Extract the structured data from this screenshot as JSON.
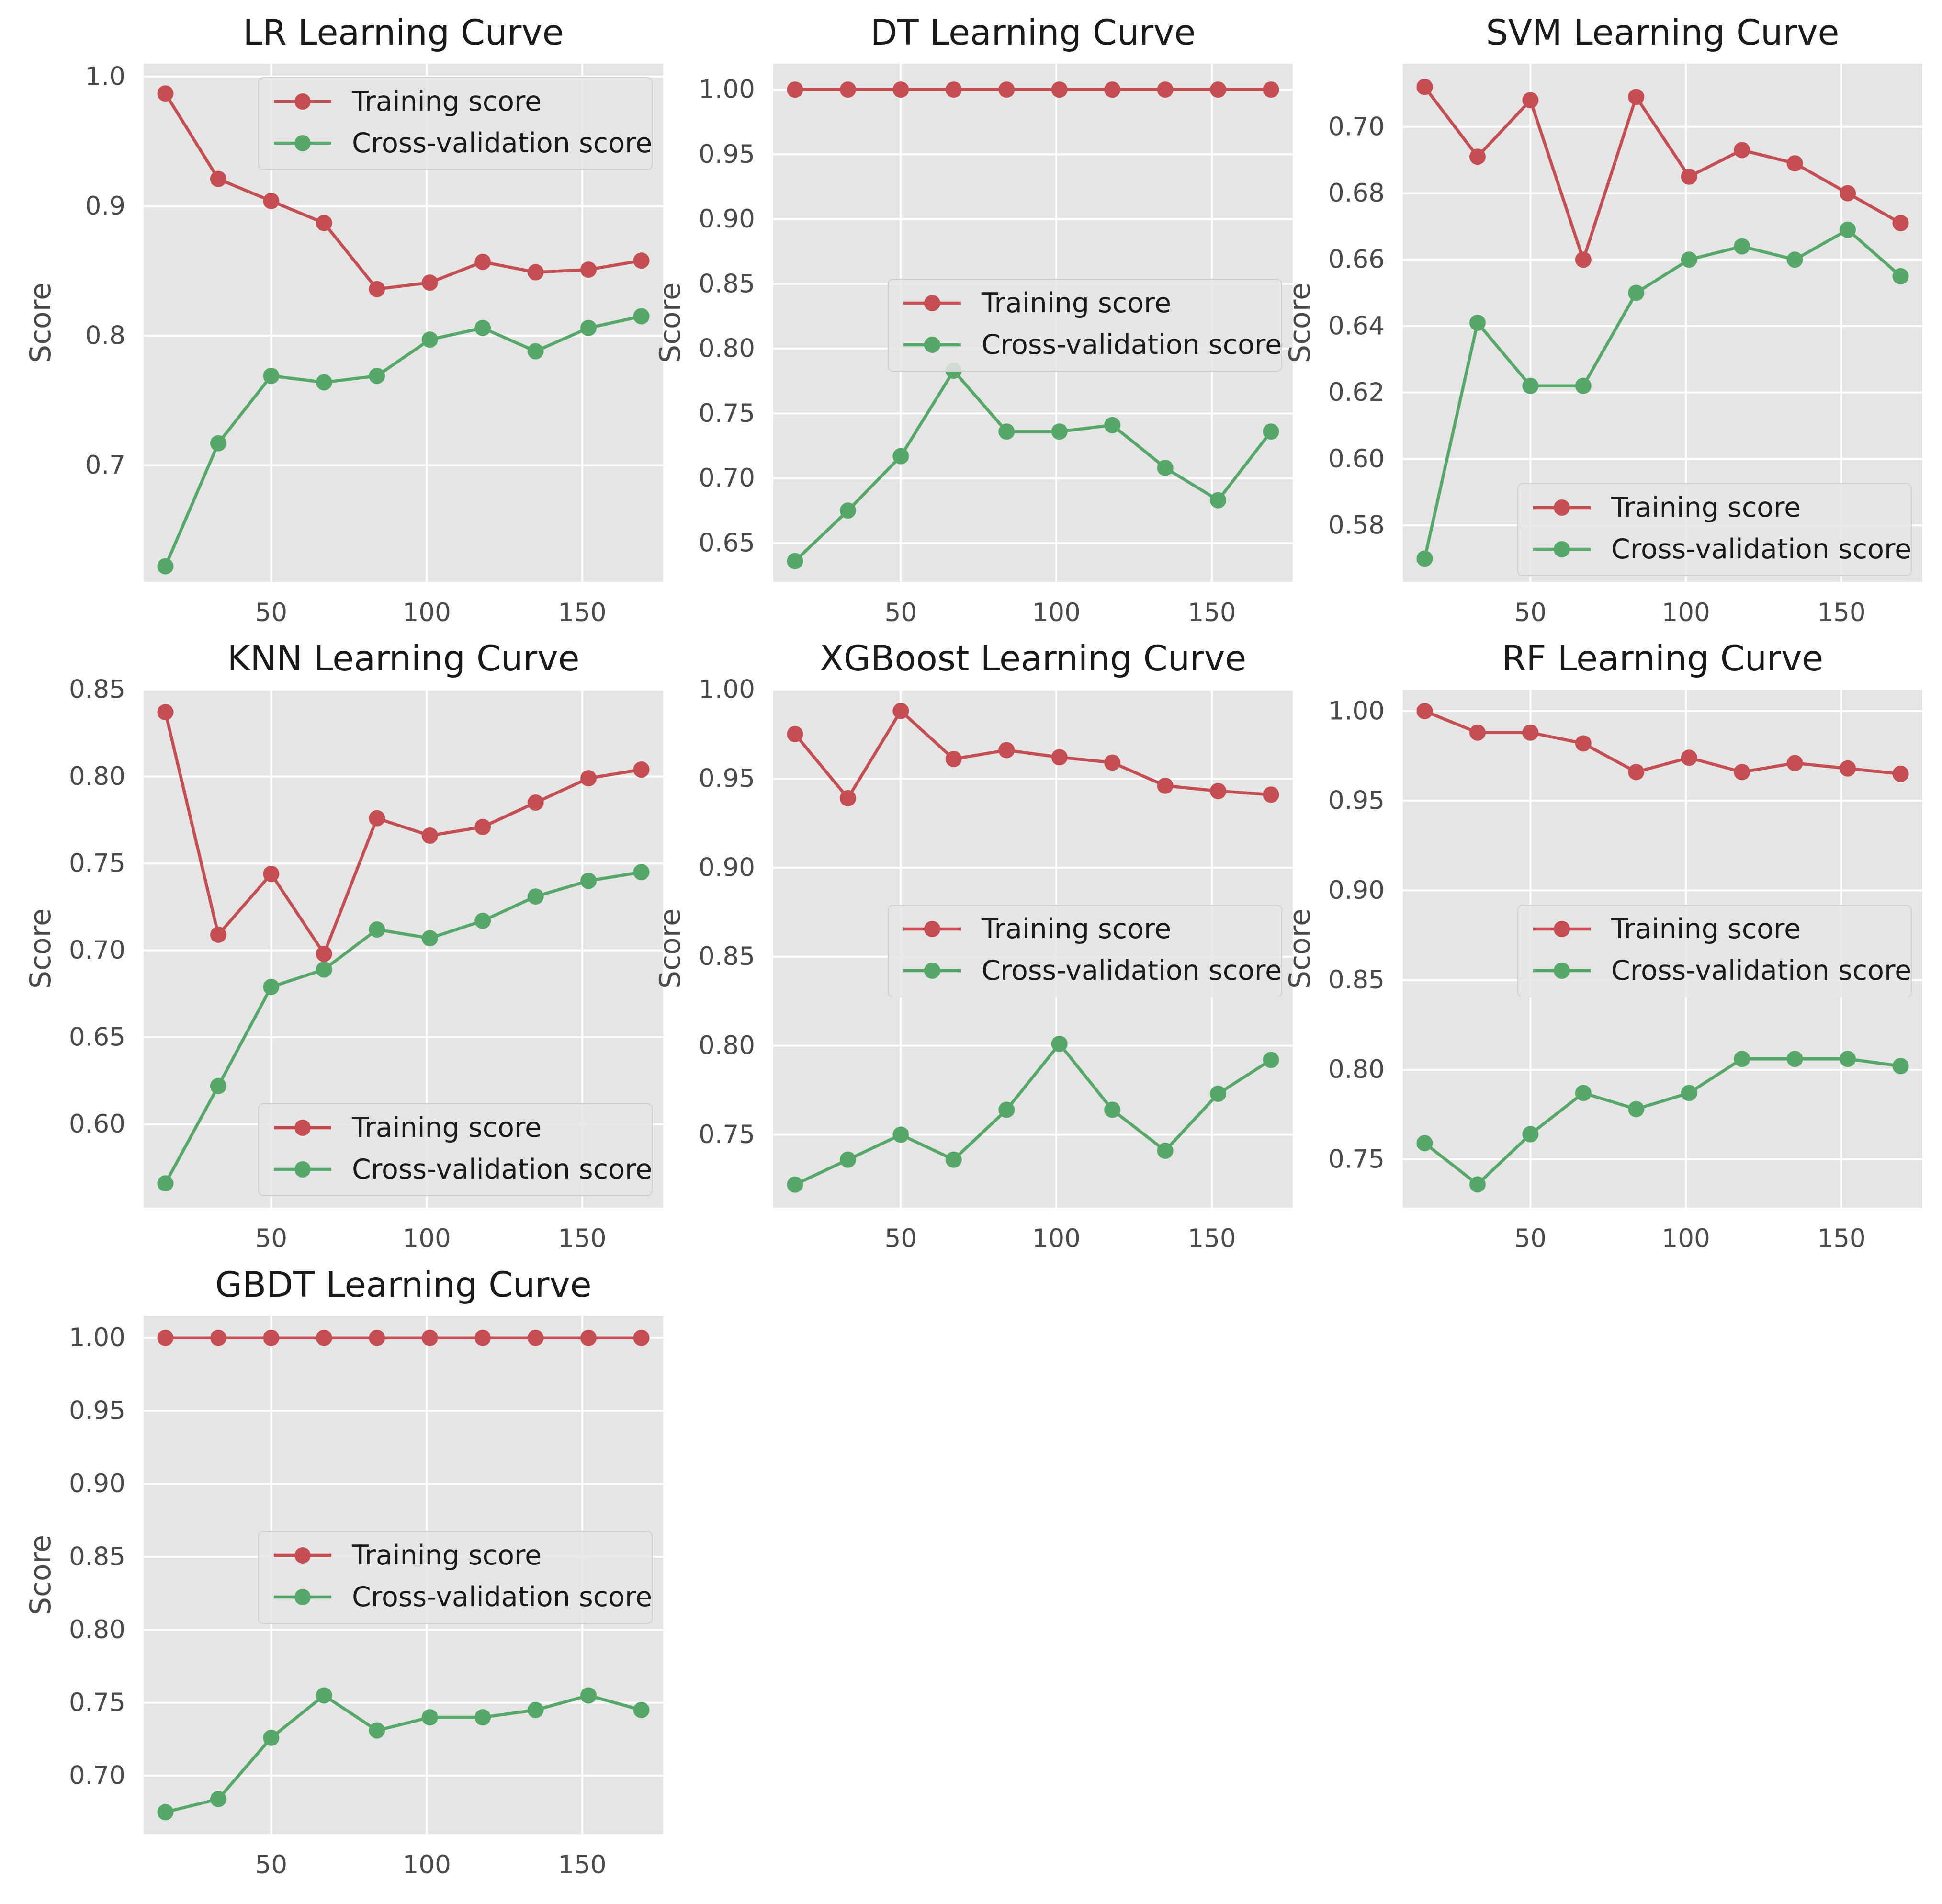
{
  "chart_data": [
    {
      "type": "line",
      "title": "LR Learning Curve",
      "xlabel": "",
      "ylabel": "Score",
      "x": [
        16,
        33,
        50,
        67,
        84,
        101,
        118,
        135,
        152,
        169
      ],
      "xlim": [
        9,
        176
      ],
      "ylim": [
        0.61,
        1.01
      ],
      "xticks": [
        50,
        100,
        150
      ],
      "xtick_labels": [
        "50",
        "100",
        "150"
      ],
      "yticks": [
        0.7,
        0.8,
        0.9,
        1.0
      ],
      "ytick_labels": [
        "0.7",
        "0.8",
        "0.9",
        "1.0"
      ],
      "grid": true,
      "legend_position": "upper right",
      "colors": [
        "#c44e52",
        "#55a868"
      ],
      "series": [
        {
          "name": "Training score",
          "values": [
            0.987,
            0.921,
            0.904,
            0.887,
            0.836,
            0.841,
            0.857,
            0.849,
            0.851,
            0.858
          ]
        },
        {
          "name": "Cross-validation score",
          "values": [
            0.622,
            0.717,
            0.769,
            0.764,
            0.769,
            0.797,
            0.806,
            0.788,
            0.806,
            0.815
          ]
        }
      ]
    },
    {
      "type": "line",
      "title": "DT Learning Curve",
      "xlabel": "",
      "ylabel": "Score",
      "x": [
        16,
        33,
        50,
        67,
        84,
        101,
        118,
        135,
        152,
        169
      ],
      "xlim": [
        9,
        176
      ],
      "ylim": [
        0.62,
        1.02
      ],
      "xticks": [
        50,
        100,
        150
      ],
      "xtick_labels": [
        "50",
        "100",
        "150"
      ],
      "yticks": [
        0.65,
        0.7,
        0.75,
        0.8,
        0.85,
        0.9,
        0.95,
        1.0
      ],
      "ytick_labels": [
        "0.65",
        "0.70",
        "0.75",
        "0.80",
        "0.85",
        "0.90",
        "0.95",
        "1.00"
      ],
      "grid": true,
      "legend_position": "center right",
      "colors": [
        "#c44e52",
        "#55a868"
      ],
      "series": [
        {
          "name": "Training score",
          "values": [
            1.0,
            1.0,
            1.0,
            1.0,
            1.0,
            1.0,
            1.0,
            1.0,
            1.0,
            1.0
          ]
        },
        {
          "name": "Cross-validation score",
          "values": [
            0.636,
            0.675,
            0.717,
            0.783,
            0.736,
            0.736,
            0.741,
            0.708,
            0.683,
            0.736
          ]
        }
      ]
    },
    {
      "type": "line",
      "title": "SVM Learning Curve",
      "xlabel": "",
      "ylabel": "Score",
      "x": [
        16,
        33,
        50,
        67,
        84,
        101,
        118,
        135,
        152,
        169
      ],
      "xlim": [
        9,
        176
      ],
      "ylim": [
        0.563,
        0.719
      ],
      "xticks": [
        50,
        100,
        150
      ],
      "xtick_labels": [
        "50",
        "100",
        "150"
      ],
      "yticks": [
        0.58,
        0.6,
        0.62,
        0.64,
        0.66,
        0.68,
        0.7
      ],
      "ytick_labels": [
        "0.58",
        "0.60",
        "0.62",
        "0.64",
        "0.66",
        "0.68",
        "0.70"
      ],
      "grid": true,
      "legend_position": "lower right",
      "colors": [
        "#c44e52",
        "#55a868"
      ],
      "series": [
        {
          "name": "Training score",
          "values": [
            0.712,
            0.691,
            0.708,
            0.66,
            0.709,
            0.685,
            0.693,
            0.689,
            0.68,
            0.671
          ]
        },
        {
          "name": "Cross-validation score",
          "values": [
            0.57,
            0.641,
            0.622,
            0.622,
            0.65,
            0.66,
            0.664,
            0.66,
            0.669,
            0.655
          ]
        }
      ]
    },
    {
      "type": "line",
      "title": "KNN Learning Curve",
      "xlabel": "",
      "ylabel": "Score",
      "x": [
        16,
        33,
        50,
        67,
        84,
        101,
        118,
        135,
        152,
        169
      ],
      "xlim": [
        9,
        176
      ],
      "ylim": [
        0.552,
        0.85
      ],
      "xticks": [
        50,
        100,
        150
      ],
      "xtick_labels": [
        "50",
        "100",
        "150"
      ],
      "yticks": [
        0.6,
        0.65,
        0.7,
        0.75,
        0.8,
        0.85
      ],
      "ytick_labels": [
        "0.60",
        "0.65",
        "0.70",
        "0.75",
        "0.80",
        "0.85"
      ],
      "grid": true,
      "legend_position": "lower right",
      "colors": [
        "#c44e52",
        "#55a868"
      ],
      "series": [
        {
          "name": "Training score",
          "values": [
            0.837,
            0.709,
            0.744,
            0.698,
            0.776,
            0.766,
            0.771,
            0.785,
            0.799,
            0.804
          ]
        },
        {
          "name": "Cross-validation score",
          "values": [
            0.566,
            0.622,
            0.679,
            0.689,
            0.712,
            0.707,
            0.717,
            0.731,
            0.74,
            0.745
          ]
        }
      ]
    },
    {
      "type": "line",
      "title": "XGBoost Learning Curve",
      "xlabel": "",
      "ylabel": "Score",
      "x": [
        16,
        33,
        50,
        67,
        84,
        101,
        118,
        135,
        152,
        169
      ],
      "xlim": [
        9,
        176
      ],
      "ylim": [
        0.709,
        1.0
      ],
      "xticks": [
        50,
        100,
        150
      ],
      "xtick_labels": [
        "50",
        "100",
        "150"
      ],
      "yticks": [
        0.75,
        0.8,
        0.85,
        0.9,
        0.95,
        1.0
      ],
      "ytick_labels": [
        "0.75",
        "0.80",
        "0.85",
        "0.90",
        "0.95",
        "1.00"
      ],
      "grid": true,
      "legend_position": "center right",
      "colors": [
        "#c44e52",
        "#55a868"
      ],
      "series": [
        {
          "name": "Training score",
          "values": [
            0.975,
            0.939,
            0.988,
            0.961,
            0.966,
            0.962,
            0.959,
            0.946,
            0.943,
            0.941
          ]
        },
        {
          "name": "Cross-validation score",
          "values": [
            0.722,
            0.736,
            0.75,
            0.736,
            0.764,
            0.801,
            0.764,
            0.741,
            0.773,
            0.792
          ]
        }
      ]
    },
    {
      "type": "line",
      "title": "RF Learning Curve",
      "xlabel": "",
      "ylabel": "Score",
      "x": [
        16,
        33,
        50,
        67,
        84,
        101,
        118,
        135,
        152,
        169
      ],
      "xlim": [
        9,
        176
      ],
      "ylim": [
        0.723,
        1.012
      ],
      "xticks": [
        50,
        100,
        150
      ],
      "xtick_labels": [
        "50",
        "100",
        "150"
      ],
      "yticks": [
        0.75,
        0.8,
        0.85,
        0.9,
        0.95,
        1.0
      ],
      "ytick_labels": [
        "0.75",
        "0.80",
        "0.85",
        "0.90",
        "0.95",
        "1.00"
      ],
      "grid": true,
      "legend_position": "center right",
      "colors": [
        "#c44e52",
        "#55a868"
      ],
      "series": [
        {
          "name": "Training score",
          "values": [
            1.0,
            0.988,
            0.988,
            0.982,
            0.966,
            0.974,
            0.966,
            0.971,
            0.968,
            0.965
          ]
        },
        {
          "name": "Cross-validation score",
          "values": [
            0.759,
            0.736,
            0.764,
            0.787,
            0.778,
            0.787,
            0.806,
            0.806,
            0.806,
            0.802
          ]
        }
      ]
    },
    {
      "type": "line",
      "title": "GBDT Learning Curve",
      "xlabel": "",
      "ylabel": "Score",
      "x": [
        16,
        33,
        50,
        67,
        84,
        101,
        118,
        135,
        152,
        169
      ],
      "xlim": [
        9,
        176
      ],
      "ylim": [
        0.66,
        1.015
      ],
      "xticks": [
        50,
        100,
        150
      ],
      "xtick_labels": [
        "50",
        "100",
        "150"
      ],
      "yticks": [
        0.7,
        0.75,
        0.8,
        0.85,
        0.9,
        0.95,
        1.0
      ],
      "ytick_labels": [
        "0.70",
        "0.75",
        "0.80",
        "0.85",
        "0.90",
        "0.95",
        "1.00"
      ],
      "grid": true,
      "legend_position": "center right",
      "colors": [
        "#c44e52",
        "#55a868"
      ],
      "series": [
        {
          "name": "Training score",
          "values": [
            1.0,
            1.0,
            1.0,
            1.0,
            1.0,
            1.0,
            1.0,
            1.0,
            1.0,
            1.0
          ]
        },
        {
          "name": "Cross-validation score",
          "values": [
            0.675,
            0.684,
            0.726,
            0.755,
            0.731,
            0.74,
            0.74,
            0.745,
            0.755,
            0.745
          ]
        }
      ]
    }
  ]
}
